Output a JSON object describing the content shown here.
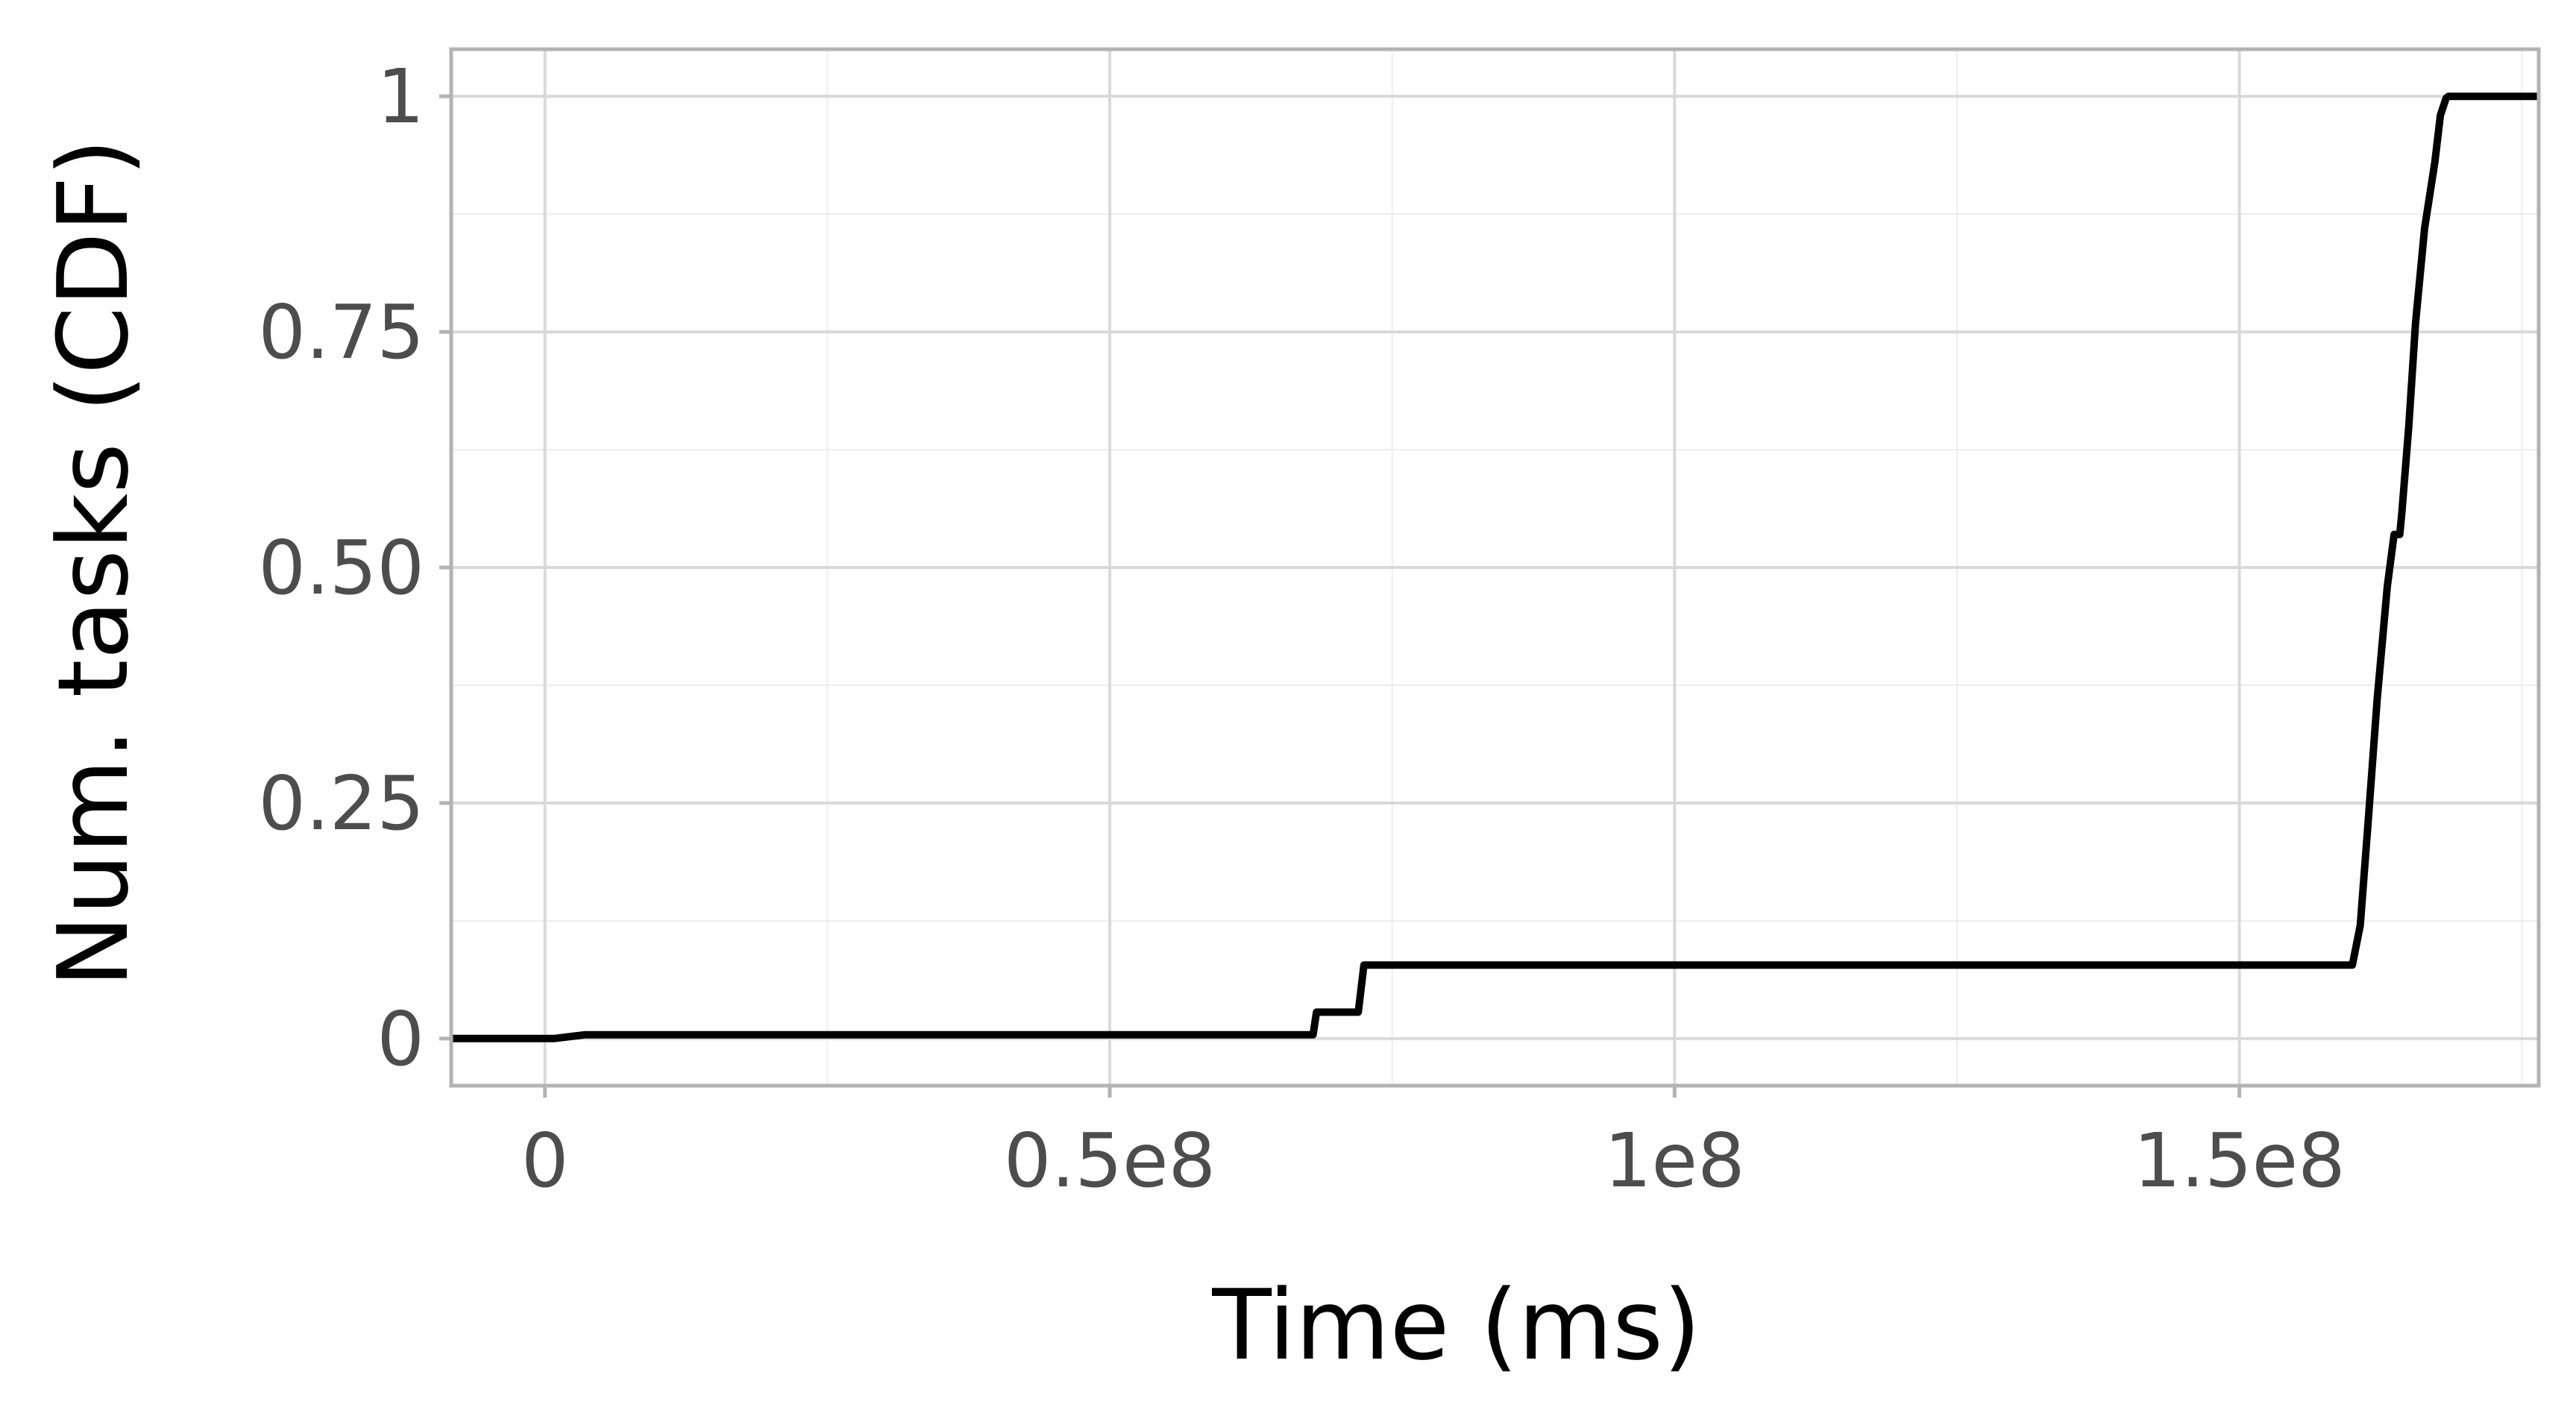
{
  "chart_data": {
    "type": "line",
    "title": "",
    "xlabel": "Time (ms)",
    "ylabel": "Num. tasks (CDF)",
    "xlim": [
      -8300000,
      176500000
    ],
    "ylim": [
      -0.05,
      1.05
    ],
    "x_ticks": [
      {
        "value": 0,
        "label": "0"
      },
      {
        "value": 50000000,
        "label": "0.5e8"
      },
      {
        "value": 100000000,
        "label": "1e8"
      },
      {
        "value": 150000000,
        "label": "1.5e8"
      }
    ],
    "y_ticks": [
      {
        "value": 0,
        "label": "0"
      },
      {
        "value": 0.25,
        "label": "0.25"
      },
      {
        "value": 0.5,
        "label": "0.50"
      },
      {
        "value": 0.75,
        "label": "0.75"
      },
      {
        "value": 1,
        "label": "1"
      }
    ],
    "x_minor": [
      25000000,
      75000000,
      125000000,
      175000000
    ],
    "y_minor": [
      0.125,
      0.375,
      0.625,
      0.875
    ],
    "grid": true,
    "legend": "none",
    "series": [
      {
        "color": "#000000",
        "x": [
          -8300000,
          800000,
          3500000,
          68000000,
          68300000,
          72000000,
          72500000,
          160000000,
          160700000,
          161400000,
          162200000,
          163100000,
          163700000,
          164200000,
          164400000,
          165000000,
          165600000,
          166400000,
          167300000,
          167800000,
          168300000,
          168500000,
          176500000
        ],
        "y": [
          0,
          0,
          0.004,
          0.004,
          0.028,
          0.028,
          0.078,
          0.078,
          0.12,
          0.23,
          0.36,
          0.48,
          0.535,
          0.535,
          0.56,
          0.65,
          0.76,
          0.86,
          0.93,
          0.98,
          0.998,
          1,
          1
        ]
      }
    ]
  },
  "colors": {
    "panel_border": "#b3b3b3",
    "grid_major": "#d9d9d9",
    "grid_minor": "#ededed",
    "tick_text": "#4d4d4d"
  }
}
